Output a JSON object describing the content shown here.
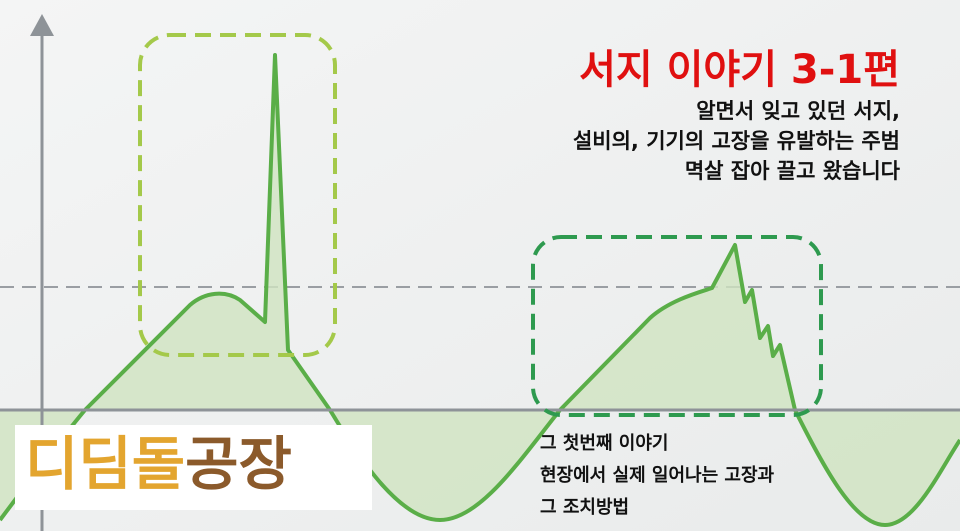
{
  "headline": {
    "title": "서지 이야기 3-1편",
    "lines": [
      "알면서 잊고 있던 서지,",
      "설비의, 기기의 고장을 유발하는 주범",
      "멱살 잡아 끌고 왔습니다"
    ]
  },
  "logo": {
    "part1": "디딤돌",
    "part2": "공장"
  },
  "caption": {
    "lines": [
      "그 첫번째 이야기",
      "현장에서 실제 일어나는 고장과",
      "그 조치방법"
    ]
  }
}
